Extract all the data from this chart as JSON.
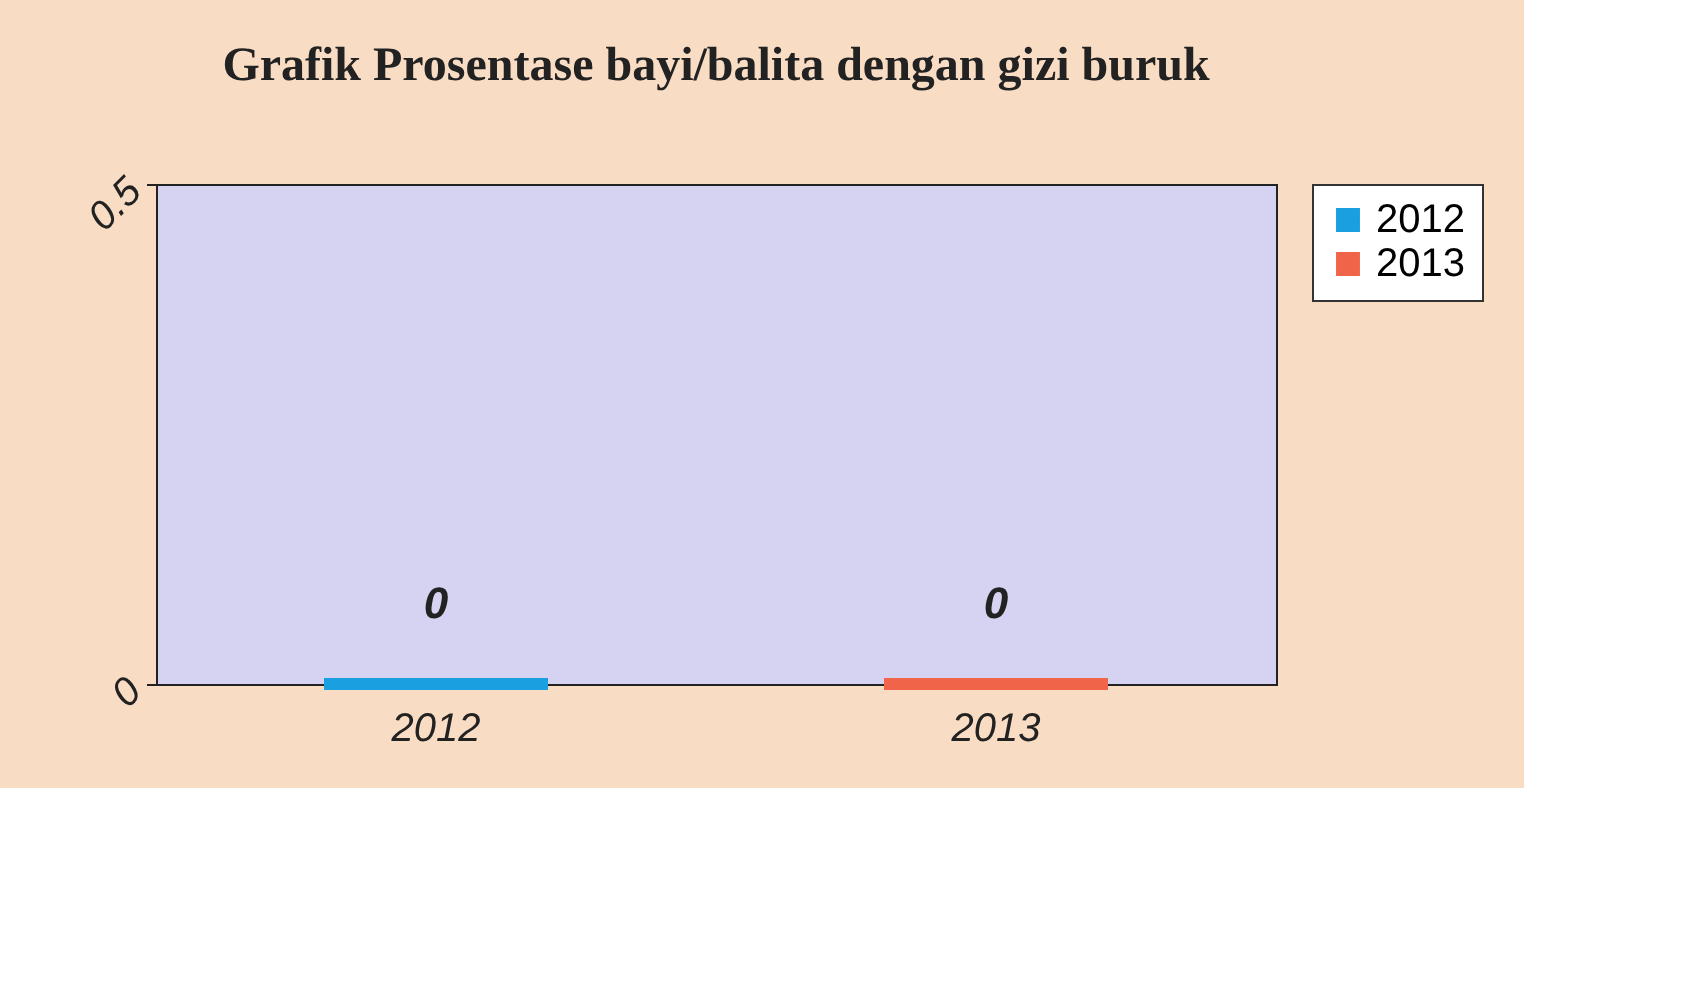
{
  "chart_data": {
    "type": "bar",
    "title": "Grafik Prosentase bayi/balita dengan gizi buruk",
    "categories": [
      "2012",
      "2013"
    ],
    "series": [
      {
        "name": "2012",
        "color": "#1a9fe0",
        "values": [
          0,
          null
        ]
      },
      {
        "name": "2013",
        "color": "#f0654a",
        "values": [
          null,
          0
        ]
      }
    ],
    "ylim": [
      0,
      0.5
    ],
    "yticks": [
      0,
      0.5
    ],
    "grid": false,
    "legend": "right",
    "data_labels": true
  }
}
